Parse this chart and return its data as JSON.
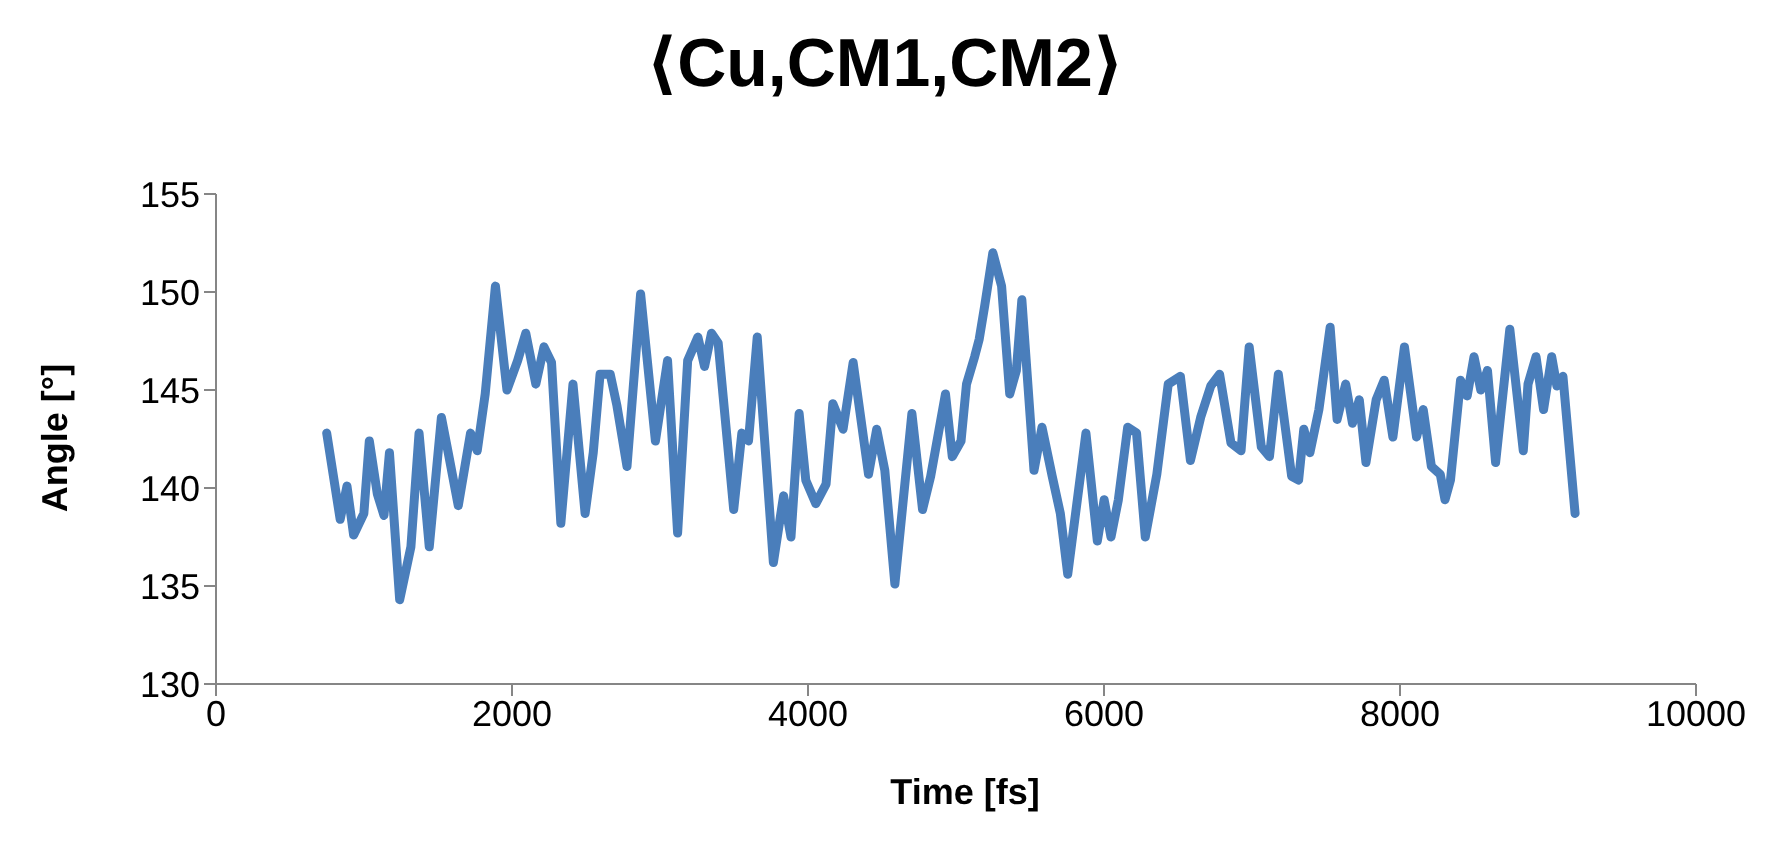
{
  "chart_data": {
    "type": "line",
    "title": "⟨Cu,CM1,CM2⟩",
    "xlabel": "Time [fs]",
    "ylabel": "Angle [°]",
    "x": [
      748,
      839,
      885,
      930,
      999,
      1036,
      1090,
      1135,
      1172,
      1241,
      1317,
      1372,
      1441,
      1523,
      1569,
      1637,
      1720,
      1765,
      1819,
      1888,
      1966,
      2038,
      2093,
      2161,
      2216,
      2267,
      2330,
      2412,
      2494,
      2549,
      2595,
      2664,
      2709,
      2777,
      2869,
      2969,
      3051,
      3119,
      3187,
      3256,
      3301,
      3348,
      3393,
      3498,
      3553,
      3598,
      3657,
      3766,
      3835,
      3885,
      3940,
      3985,
      4053,
      4122,
      4168,
      4237,
      4305,
      4409,
      4464,
      4519,
      4587,
      4702,
      4774,
      4829,
      4929,
      4975,
      5034,
      5071,
      5126,
      5157,
      5194,
      5249,
      5308,
      5363,
      5408,
      5445,
      5527,
      5581,
      5650,
      5705,
      5755,
      5878,
      5955,
      6001,
      6047,
      6097,
      6160,
      6220,
      6279,
      6357,
      6434,
      6516,
      6584,
      6653,
      6721,
      6781,
      6858,
      6926,
      6981,
      7063,
      7118,
      7178,
      7268,
      7315,
      7350,
      7391,
      7452,
      7528,
      7575,
      7633,
      7679,
      7725,
      7770,
      7839,
      7893,
      7952,
      8030,
      8112,
      8157,
      8212,
      8272,
      8304,
      8341,
      8409,
      8454,
      8500,
      8546,
      8591,
      8646,
      8742,
      8833,
      8865,
      8919,
      8970,
      9025,
      9060,
      9101,
      9183
    ],
    "series": [
      {
        "color": "#4a7ebb",
        "values": [
          142.8,
          138.4,
          140.1,
          137.6,
          138.7,
          142.4,
          139.7,
          138.6,
          141.8,
          134.3,
          137.0,
          142.8,
          137.0,
          143.6,
          141.8,
          139.1,
          142.8,
          141.9,
          144.8,
          150.3,
          145.0,
          146.5,
          147.9,
          145.3,
          147.2,
          146.4,
          138.2,
          145.3,
          138.7,
          141.8,
          145.8,
          145.8,
          144.2,
          141.1,
          149.9,
          142.4,
          146.5,
          137.7,
          146.5,
          147.7,
          146.2,
          147.9,
          147.4,
          138.9,
          142.8,
          142.4,
          147.7,
          136.2,
          139.6,
          137.5,
          143.8,
          140.4,
          139.2,
          140.2,
          144.3,
          143.0,
          146.4,
          140.7,
          143.0,
          140.9,
          135.1,
          143.8,
          138.9,
          140.6,
          144.8,
          141.6,
          142.4,
          145.3,
          146.7,
          147.6,
          149.3,
          152.0,
          150.3,
          144.8,
          146.0,
          149.6,
          140.9,
          143.1,
          140.6,
          138.7,
          135.6,
          142.8,
          137.3,
          139.4,
          137.5,
          139.4,
          143.1,
          142.8,
          137.5,
          140.7,
          145.3,
          145.7,
          141.4,
          143.6,
          145.2,
          145.8,
          142.3,
          141.9,
          147.2,
          142.1,
          141.6,
          145.8,
          140.6,
          140.4,
          143.0,
          141.8,
          144.0,
          148.2,
          143.5,
          145.3,
          143.3,
          144.5,
          141.3,
          144.5,
          145.5,
          142.6,
          147.2,
          142.6,
          144.0,
          141.1,
          140.7,
          139.4,
          140.4,
          145.5,
          144.7,
          146.7,
          145.0,
          146.0,
          141.3,
          148.1,
          141.9,
          145.3,
          146.7,
          144.0,
          146.7,
          145.2,
          145.7,
          138.7
        ]
      }
    ],
    "xlim": [
      0,
      10000
    ],
    "xticks": [
      0,
      2000,
      4000,
      6000,
      8000,
      10000
    ],
    "ylim": [
      130,
      155
    ],
    "yticks": [
      130,
      135,
      140,
      145,
      150,
      155
    ]
  }
}
